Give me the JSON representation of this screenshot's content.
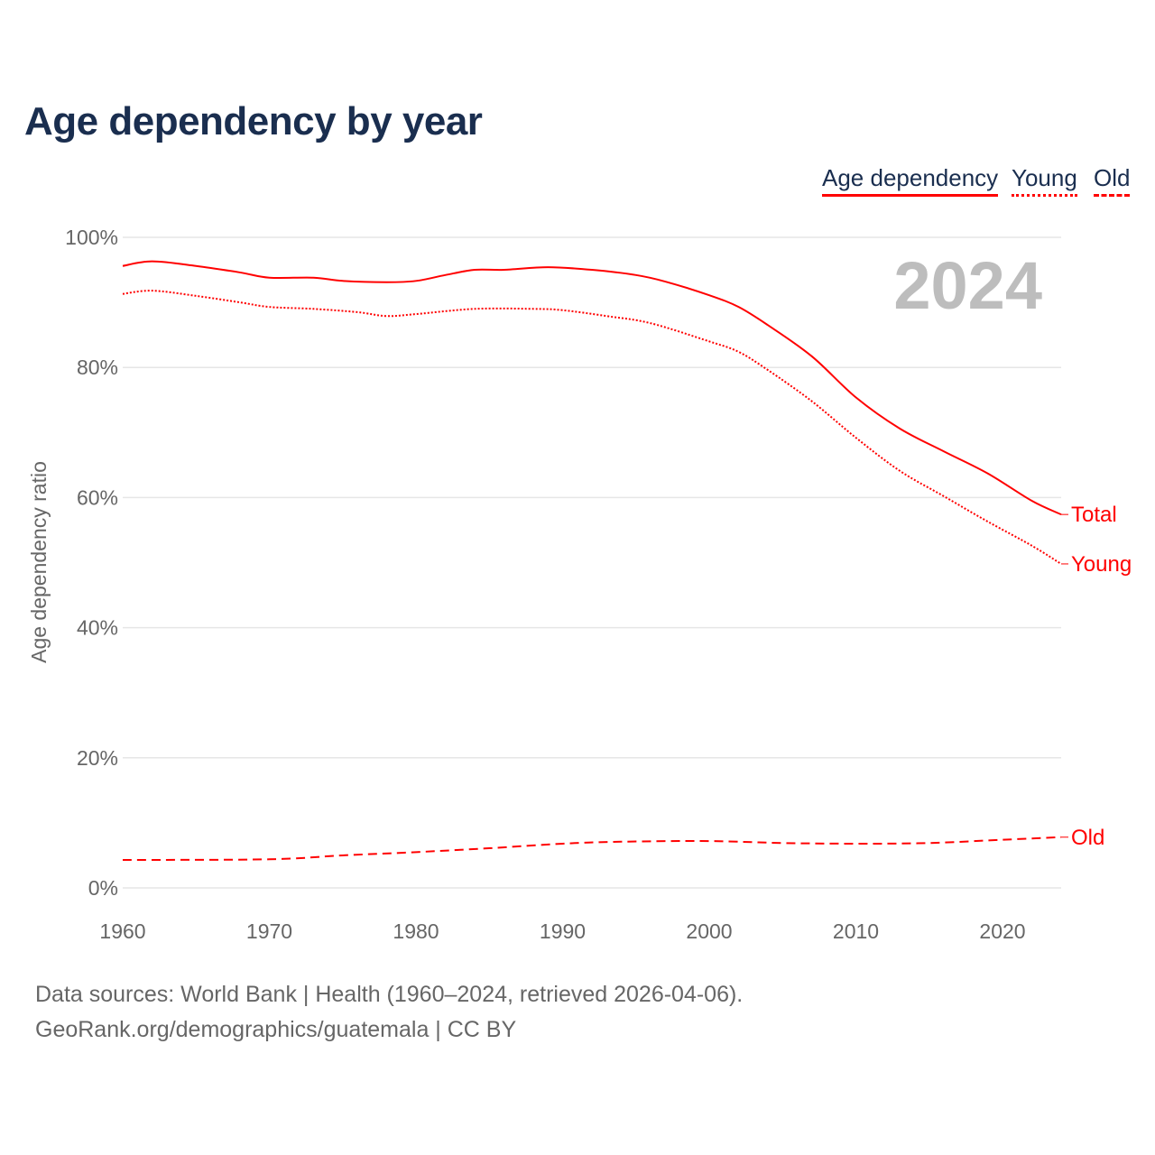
{
  "title": "Age dependency by year",
  "legend": [
    "Age dependency",
    "Young",
    "Old"
  ],
  "footer": {
    "line1": "Data sources: World Bank | Health (1960–2024, retrieved 2026-04-06).",
    "line2": "GeoRank.org/demographics/guatemala | CC BY"
  },
  "chart_data": {
    "type": "line",
    "title": "Age dependency by year",
    "xlabel": "",
    "ylabel": "Age dependency ratio",
    "xlim": [
      1960,
      2024
    ],
    "ylim": [
      0,
      100
    ],
    "xticks": [
      "1960",
      "1970",
      "1980",
      "1990",
      "2000",
      "2010",
      "2020"
    ],
    "yticks": [
      "0%",
      "20%",
      "40%",
      "60%",
      "80%",
      "100%"
    ],
    "year_label": "2024",
    "grid": true,
    "legend_position": "top-right",
    "color": "#ff0000",
    "series": [
      {
        "name": "Total",
        "style": "solid",
        "x": [
          1960,
          1962,
          1965,
          1968,
          1970,
          1973,
          1975,
          1978,
          1980,
          1982,
          1984,
          1986,
          1989,
          1992,
          1995,
          1997,
          2000,
          2002,
          2004,
          2007,
          2010,
          2013,
          2016,
          2019,
          2022,
          2024
        ],
        "y": [
          95.6,
          96.3,
          95.6,
          94.6,
          93.8,
          93.8,
          93.3,
          93.1,
          93.3,
          94.2,
          95.0,
          95.0,
          95.4,
          95.0,
          94.2,
          93.2,
          91.1,
          89.3,
          86.5,
          81.7,
          75.4,
          70.6,
          67.1,
          63.7,
          59.5,
          57.4
        ]
      },
      {
        "name": "Young",
        "style": "dotted",
        "x": [
          1960,
          1962,
          1965,
          1968,
          1970,
          1973,
          1976,
          1978,
          1980,
          1984,
          1988,
          1990,
          1993,
          1996,
          2000,
          2002,
          2004,
          2007,
          2010,
          2013,
          2016,
          2019,
          2022,
          2024
        ],
        "y": [
          91.3,
          91.8,
          91.0,
          90.0,
          89.3,
          89.0,
          88.5,
          87.9,
          88.2,
          89.0,
          89.0,
          88.8,
          87.9,
          86.8,
          84.0,
          82.4,
          79.6,
          74.8,
          69.2,
          64.1,
          60.2,
          56.3,
          52.6,
          49.8
        ]
      },
      {
        "name": "Old",
        "style": "dashed",
        "x": [
          1960,
          1970,
          1975,
          1980,
          1985,
          1990,
          1994,
          2000,
          2005,
          2010,
          2015,
          2020,
          2024
        ],
        "y": [
          4.3,
          4.4,
          5.0,
          5.5,
          6.1,
          6.8,
          7.1,
          7.2,
          6.9,
          6.8,
          6.9,
          7.4,
          7.8
        ]
      }
    ]
  }
}
